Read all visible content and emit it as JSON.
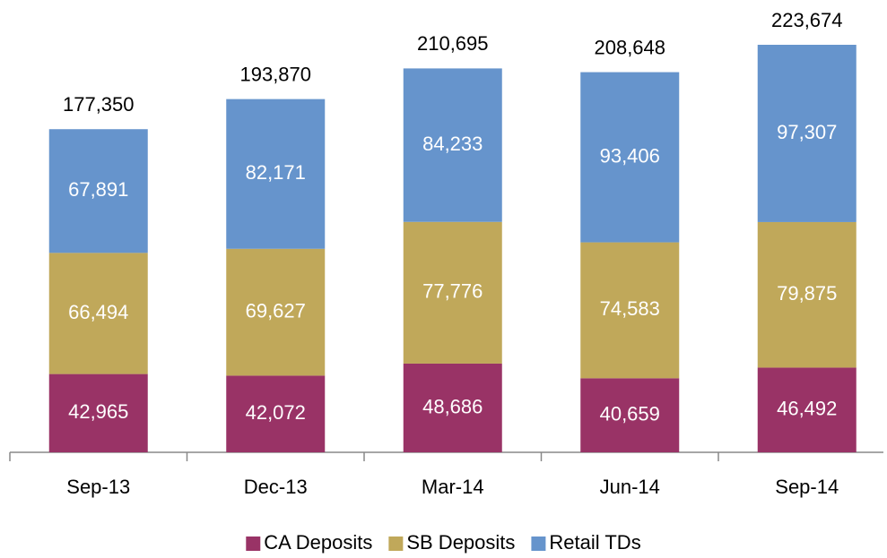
{
  "chart_data": {
    "type": "stacked_bar",
    "categories": [
      "Sep-13",
      "Dec-13",
      "Mar-14",
      "Jun-14",
      "Sep-14"
    ],
    "series": [
      {
        "name": "CA Deposits",
        "color": "#993366",
        "values": [
          42965,
          42072,
          48686,
          40659,
          46492
        ],
        "value_labels": [
          "42,965",
          "42,072",
          "48,686",
          "40,659",
          "46,492"
        ]
      },
      {
        "name": "SB Deposits",
        "color": "#c0a85a",
        "values": [
          66494,
          69627,
          77776,
          74583,
          79875
        ],
        "value_labels": [
          "66,494",
          "69,627",
          "77,776",
          "74,583",
          "79,875"
        ]
      },
      {
        "name": "Retail TDs",
        "color": "#6694cc",
        "values": [
          67891,
          82171,
          84233,
          93406,
          97307
        ],
        "value_labels": [
          "67,891",
          "82,171",
          "84,233",
          "93,406",
          "97,307"
        ]
      }
    ],
    "totals": {
      "values": [
        177350,
        193870,
        210695,
        208648,
        223674
      ],
      "value_labels": [
        "177,350",
        "193,870",
        "210,695",
        "208,648",
        "223,674"
      ]
    },
    "legend": "bottom"
  }
}
